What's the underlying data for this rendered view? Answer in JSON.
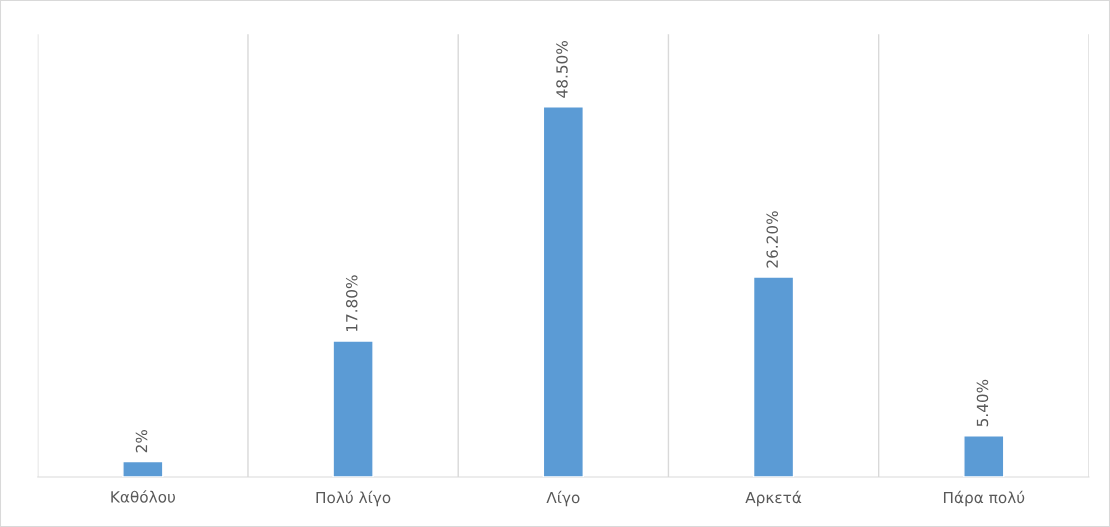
{
  "chart_data": {
    "type": "bar",
    "categories": [
      "Καθόλου",
      "Πολύ λίγο",
      "Λίγο",
      "Αρκετά",
      "Πάρα πολύ"
    ],
    "values": [
      2,
      17.8,
      48.5,
      26.2,
      5.4
    ],
    "value_labels": [
      "2%",
      "17.80%",
      "48.50%",
      "26.20%",
      "5.40%"
    ],
    "color": "#5b9bd5",
    "grid": "x",
    "legend": false
  }
}
